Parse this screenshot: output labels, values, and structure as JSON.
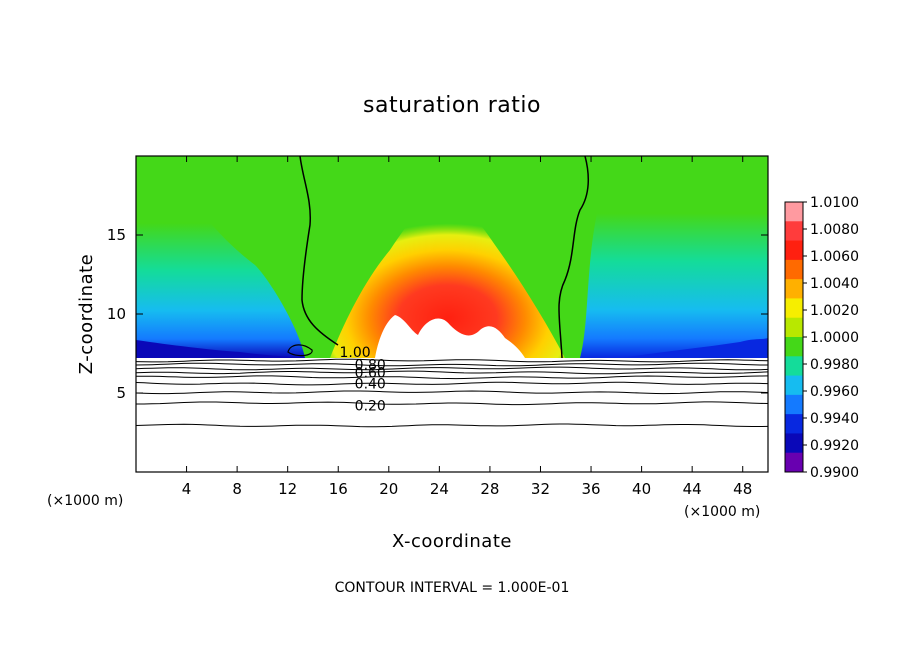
{
  "chart_data": {
    "type": "heatmap",
    "title": "saturation ratio",
    "xlabel": "X-coordinate",
    "ylabel": "Z-coordinate",
    "x_unit_left": "(×1000 m)",
    "x_unit_right": "(×1000 m)",
    "footer": "CONTOUR INTERVAL = 1.000E-01",
    "xlim": [
      0,
      50
    ],
    "ylim": [
      0,
      20
    ],
    "xticks": [
      "4",
      "8",
      "12",
      "16",
      "20",
      "24",
      "28",
      "32",
      "36",
      "40",
      "44",
      "48"
    ],
    "xtick_values": [
      4,
      8,
      12,
      16,
      20,
      24,
      28,
      32,
      36,
      40,
      44,
      48
    ],
    "yticks": [
      "5",
      "10",
      "15"
    ],
    "ytick_values": [
      5,
      10,
      15
    ],
    "surface_height": 7.2,
    "colorbar": {
      "labels": [
        "1.0100",
        "1.0080",
        "1.0060",
        "1.0040",
        "1.0020",
        "1.0000",
        "0.9980",
        "0.9960",
        "0.9940",
        "0.9920",
        "0.9900"
      ],
      "values": [
        1.01,
        1.008,
        1.006,
        1.004,
        1.002,
        1.0,
        0.998,
        0.996,
        0.994,
        0.992,
        0.99
      ],
      "colors": [
        "#ff9aa0",
        "#ff3c3c",
        "#ff2010",
        "#ff6a00",
        "#ffb000",
        "#f6ee00",
        "#b8e800",
        "#44d818",
        "#14dc9a",
        "#16bcf0",
        "#147aff",
        "#0828e0",
        "#0a08b8",
        "#6800b0"
      ]
    },
    "contour_labels": [
      {
        "text": "1.00",
        "x": 16.1,
        "z": 7.6
      },
      {
        "text": "0.80",
        "x": 17.3,
        "z": 6.8
      },
      {
        "text": "0.60",
        "x": 17.3,
        "z": 6.3
      },
      {
        "text": "0.40",
        "x": 17.3,
        "z": 5.6
      },
      {
        "text": "0.20",
        "x": 17.3,
        "z": 4.2
      }
    ],
    "contour_lines_z": [
      7.05,
      6.8,
      6.55,
      6.3,
      6.0,
      5.6,
      5.05,
      4.35,
      2.95
    ]
  }
}
